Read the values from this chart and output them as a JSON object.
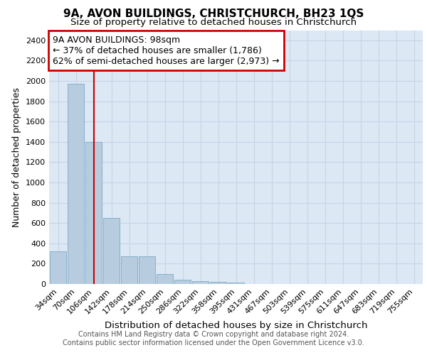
{
  "title_line1": "9A, AVON BUILDINGS, CHRISTCHURCH, BH23 1QS",
  "title_line2": "Size of property relative to detached houses in Christchurch",
  "xlabel": "Distribution of detached houses by size in Christchurch",
  "ylabel": "Number of detached properties",
  "bar_labels": [
    "34sqm",
    "70sqm",
    "106sqm",
    "142sqm",
    "178sqm",
    "214sqm",
    "250sqm",
    "286sqm",
    "322sqm",
    "358sqm",
    "395sqm",
    "431sqm",
    "467sqm",
    "503sqm",
    "539sqm",
    "575sqm",
    "611sqm",
    "647sqm",
    "683sqm",
    "719sqm",
    "755sqm"
  ],
  "bar_values": [
    325,
    1975,
    1400,
    650,
    275,
    275,
    100,
    45,
    30,
    20,
    15,
    0,
    0,
    0,
    0,
    0,
    0,
    0,
    0,
    0,
    0
  ],
  "bar_color": "#b8ccdf",
  "bar_edge_color": "#7aaac8",
  "property_line_x": 2.0,
  "annotation_text": "9A AVON BUILDINGS: 98sqm\n← 37% of detached houses are smaller (1,786)\n62% of semi-detached houses are larger (2,973) →",
  "annotation_box_color": "#ffffff",
  "annotation_box_edge_color": "#cc0000",
  "vline_color": "#cc0000",
  "ylim": [
    0,
    2500
  ],
  "yticks": [
    0,
    200,
    400,
    600,
    800,
    1000,
    1200,
    1400,
    1600,
    1800,
    2000,
    2200,
    2400
  ],
  "grid_color": "#c8d4e4",
  "background_color": "#dce8f4",
  "footer_line1": "Contains HM Land Registry data © Crown copyright and database right 2024.",
  "footer_line2": "Contains public sector information licensed under the Open Government Licence v3.0.",
  "title_fontsize": 11,
  "subtitle_fontsize": 9.5,
  "axis_label_fontsize": 9,
  "tick_fontsize": 8,
  "annotation_fontsize": 9,
  "footer_fontsize": 7
}
